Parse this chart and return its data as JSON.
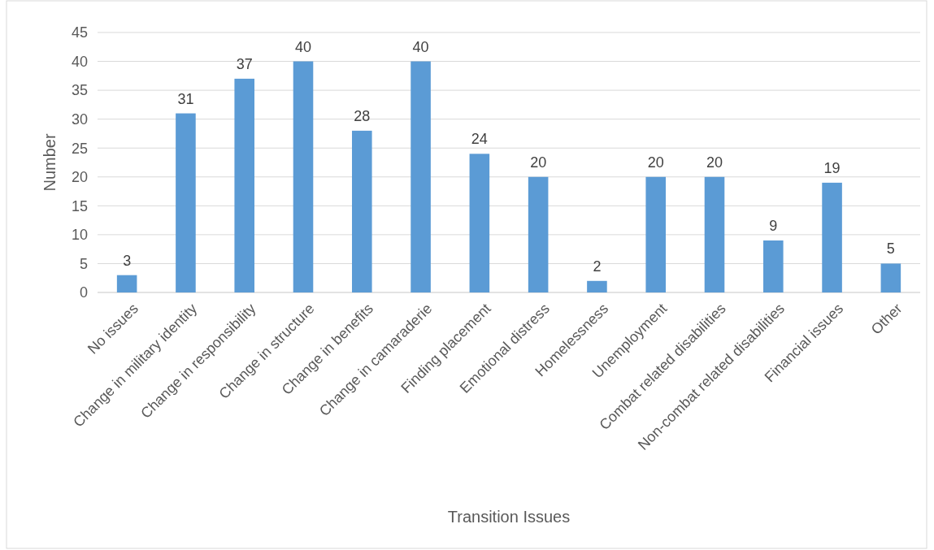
{
  "chart_data": {
    "type": "bar",
    "xlabel": "Transition Issues",
    "ylabel": "Number",
    "categories": [
      "No issues",
      "Change in military identity",
      "Change in responsibility",
      "Change in structure",
      "Change in benefits",
      "Change in camaraderie",
      "Finding placement",
      "Emotional distress",
      "Homelessness",
      "Unemployment",
      "Combat related disabilities",
      "Non-combat related disabilities",
      "Financial issues",
      "Other"
    ],
    "values": [
      3,
      31,
      37,
      40,
      28,
      40,
      24,
      20,
      2,
      20,
      20,
      9,
      19,
      5
    ],
    "color": "#5b9bd5",
    "ylim": [
      0,
      45
    ],
    "yticks": [
      0,
      5,
      10,
      15,
      20,
      25,
      30,
      35,
      40,
      45
    ],
    "grid": "y",
    "data_labels": true
  }
}
